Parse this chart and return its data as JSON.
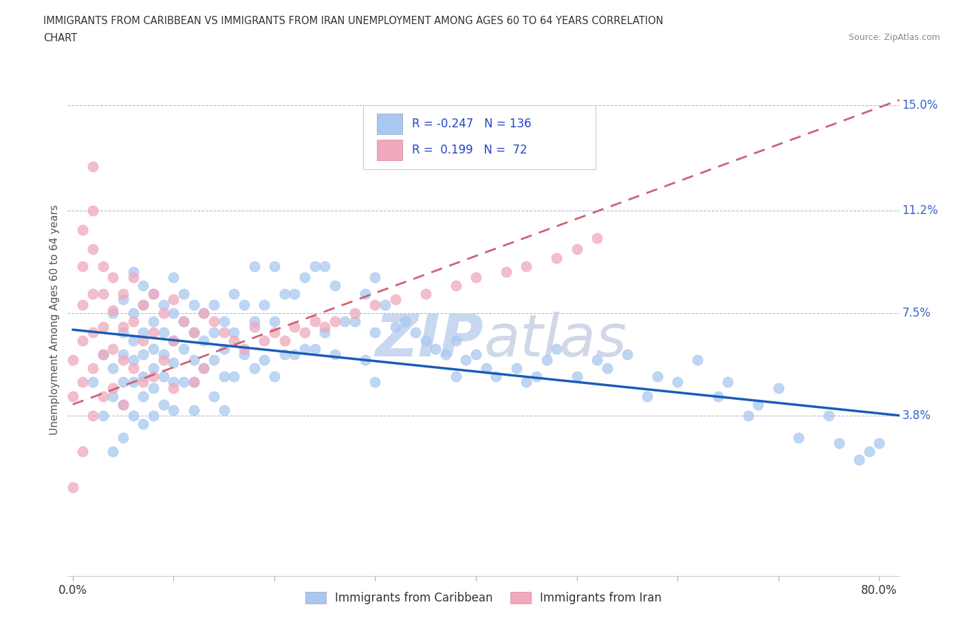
{
  "title_line1": "IMMIGRANTS FROM CARIBBEAN VS IMMIGRANTS FROM IRAN UNEMPLOYMENT AMONG AGES 60 TO 64 YEARS CORRELATION",
  "title_line2": "CHART",
  "source_text": "Source: ZipAtlas.com",
  "ylabel": "Unemployment Among Ages 60 to 64 years",
  "xlim": [
    -0.005,
    0.82
  ],
  "ylim": [
    -0.02,
    0.165
  ],
  "yticks": [
    0.038,
    0.075,
    0.112,
    0.15
  ],
  "ytick_labels": [
    "3.8%",
    "7.5%",
    "11.2%",
    "15.0%"
  ],
  "legend_labels": [
    "Immigrants from Caribbean",
    "Immigrants from Iran"
  ],
  "legend_R": [
    "-0.247",
    "0.199"
  ],
  "legend_N": [
    "136",
    "72"
  ],
  "blue_color": "#A8C8F0",
  "pink_color": "#F0A8BC",
  "blue_line_color": "#1a5cb8",
  "pink_line_color": "#D06070",
  "watermark_color": "#C8D8F0",
  "blue_scatter_x": [
    0.02,
    0.03,
    0.03,
    0.04,
    0.04,
    0.04,
    0.04,
    0.05,
    0.05,
    0.05,
    0.05,
    0.05,
    0.05,
    0.06,
    0.06,
    0.06,
    0.06,
    0.06,
    0.06,
    0.07,
    0.07,
    0.07,
    0.07,
    0.07,
    0.07,
    0.07,
    0.08,
    0.08,
    0.08,
    0.08,
    0.08,
    0.08,
    0.09,
    0.09,
    0.09,
    0.09,
    0.09,
    0.1,
    0.1,
    0.1,
    0.1,
    0.1,
    0.1,
    0.11,
    0.11,
    0.11,
    0.11,
    0.12,
    0.12,
    0.12,
    0.12,
    0.12,
    0.13,
    0.13,
    0.13,
    0.14,
    0.14,
    0.14,
    0.14,
    0.15,
    0.15,
    0.15,
    0.15,
    0.16,
    0.16,
    0.16,
    0.17,
    0.17,
    0.18,
    0.18,
    0.18,
    0.19,
    0.19,
    0.2,
    0.2,
    0.2,
    0.21,
    0.21,
    0.22,
    0.22,
    0.23,
    0.23,
    0.24,
    0.24,
    0.25,
    0.25,
    0.26,
    0.26,
    0.27,
    0.28,
    0.29,
    0.29,
    0.3,
    0.3,
    0.3,
    0.31,
    0.32,
    0.33,
    0.34,
    0.35,
    0.36,
    0.37,
    0.38,
    0.38,
    0.39,
    0.4,
    0.41,
    0.42,
    0.44,
    0.45,
    0.46,
    0.47,
    0.48,
    0.5,
    0.52,
    0.53,
    0.55,
    0.57,
    0.58,
    0.6,
    0.62,
    0.64,
    0.65,
    0.67,
    0.68,
    0.7,
    0.72,
    0.75,
    0.76,
    0.78,
    0.79,
    0.8
  ],
  "blue_scatter_y": [
    0.05,
    0.06,
    0.038,
    0.075,
    0.055,
    0.045,
    0.025,
    0.08,
    0.068,
    0.06,
    0.05,
    0.042,
    0.03,
    0.09,
    0.075,
    0.065,
    0.058,
    0.05,
    0.038,
    0.085,
    0.078,
    0.068,
    0.06,
    0.052,
    0.045,
    0.035,
    0.082,
    0.072,
    0.062,
    0.055,
    0.048,
    0.038,
    0.078,
    0.068,
    0.06,
    0.052,
    0.042,
    0.088,
    0.075,
    0.065,
    0.057,
    0.05,
    0.04,
    0.082,
    0.072,
    0.062,
    0.05,
    0.078,
    0.068,
    0.058,
    0.05,
    0.04,
    0.075,
    0.065,
    0.055,
    0.078,
    0.068,
    0.058,
    0.045,
    0.072,
    0.062,
    0.052,
    0.04,
    0.082,
    0.068,
    0.052,
    0.078,
    0.06,
    0.092,
    0.072,
    0.055,
    0.078,
    0.058,
    0.092,
    0.072,
    0.052,
    0.082,
    0.06,
    0.082,
    0.06,
    0.088,
    0.062,
    0.092,
    0.062,
    0.092,
    0.068,
    0.085,
    0.06,
    0.072,
    0.072,
    0.082,
    0.058,
    0.088,
    0.068,
    0.05,
    0.078,
    0.07,
    0.072,
    0.068,
    0.065,
    0.062,
    0.06,
    0.065,
    0.052,
    0.058,
    0.06,
    0.055,
    0.052,
    0.055,
    0.05,
    0.052,
    0.058,
    0.062,
    0.052,
    0.058,
    0.055,
    0.06,
    0.045,
    0.052,
    0.05,
    0.058,
    0.045,
    0.05,
    0.038,
    0.042,
    0.048,
    0.03,
    0.038,
    0.028,
    0.022,
    0.025,
    0.028
  ],
  "pink_scatter_x": [
    0.0,
    0.0,
    0.0,
    0.01,
    0.01,
    0.01,
    0.01,
    0.01,
    0.01,
    0.02,
    0.02,
    0.02,
    0.02,
    0.02,
    0.02,
    0.02,
    0.03,
    0.03,
    0.03,
    0.03,
    0.03,
    0.04,
    0.04,
    0.04,
    0.04,
    0.05,
    0.05,
    0.05,
    0.05,
    0.06,
    0.06,
    0.06,
    0.07,
    0.07,
    0.07,
    0.08,
    0.08,
    0.08,
    0.09,
    0.09,
    0.1,
    0.1,
    0.1,
    0.11,
    0.12,
    0.12,
    0.13,
    0.13,
    0.14,
    0.15,
    0.16,
    0.17,
    0.18,
    0.19,
    0.2,
    0.21,
    0.22,
    0.23,
    0.24,
    0.25,
    0.26,
    0.28,
    0.3,
    0.32,
    0.35,
    0.38,
    0.4,
    0.43,
    0.45,
    0.48,
    0.5,
    0.52
  ],
  "pink_scatter_y": [
    0.058,
    0.045,
    0.012,
    0.105,
    0.092,
    0.078,
    0.065,
    0.05,
    0.025,
    0.128,
    0.112,
    0.098,
    0.082,
    0.068,
    0.055,
    0.038,
    0.092,
    0.082,
    0.07,
    0.06,
    0.045,
    0.088,
    0.076,
    0.062,
    0.048,
    0.082,
    0.07,
    0.058,
    0.042,
    0.088,
    0.072,
    0.055,
    0.078,
    0.065,
    0.05,
    0.082,
    0.068,
    0.052,
    0.075,
    0.058,
    0.08,
    0.065,
    0.048,
    0.072,
    0.068,
    0.05,
    0.075,
    0.055,
    0.072,
    0.068,
    0.065,
    0.062,
    0.07,
    0.065,
    0.068,
    0.065,
    0.07,
    0.068,
    0.072,
    0.07,
    0.072,
    0.075,
    0.078,
    0.08,
    0.082,
    0.085,
    0.088,
    0.09,
    0.092,
    0.095,
    0.098,
    0.102
  ],
  "blue_trend_x": [
    0.0,
    0.82
  ],
  "blue_trend_y_start": 0.069,
  "blue_trend_y_end": 0.038,
  "pink_trend_x": [
    0.0,
    0.82
  ],
  "pink_trend_y_start": 0.042,
  "pink_trend_y_end": 0.152
}
